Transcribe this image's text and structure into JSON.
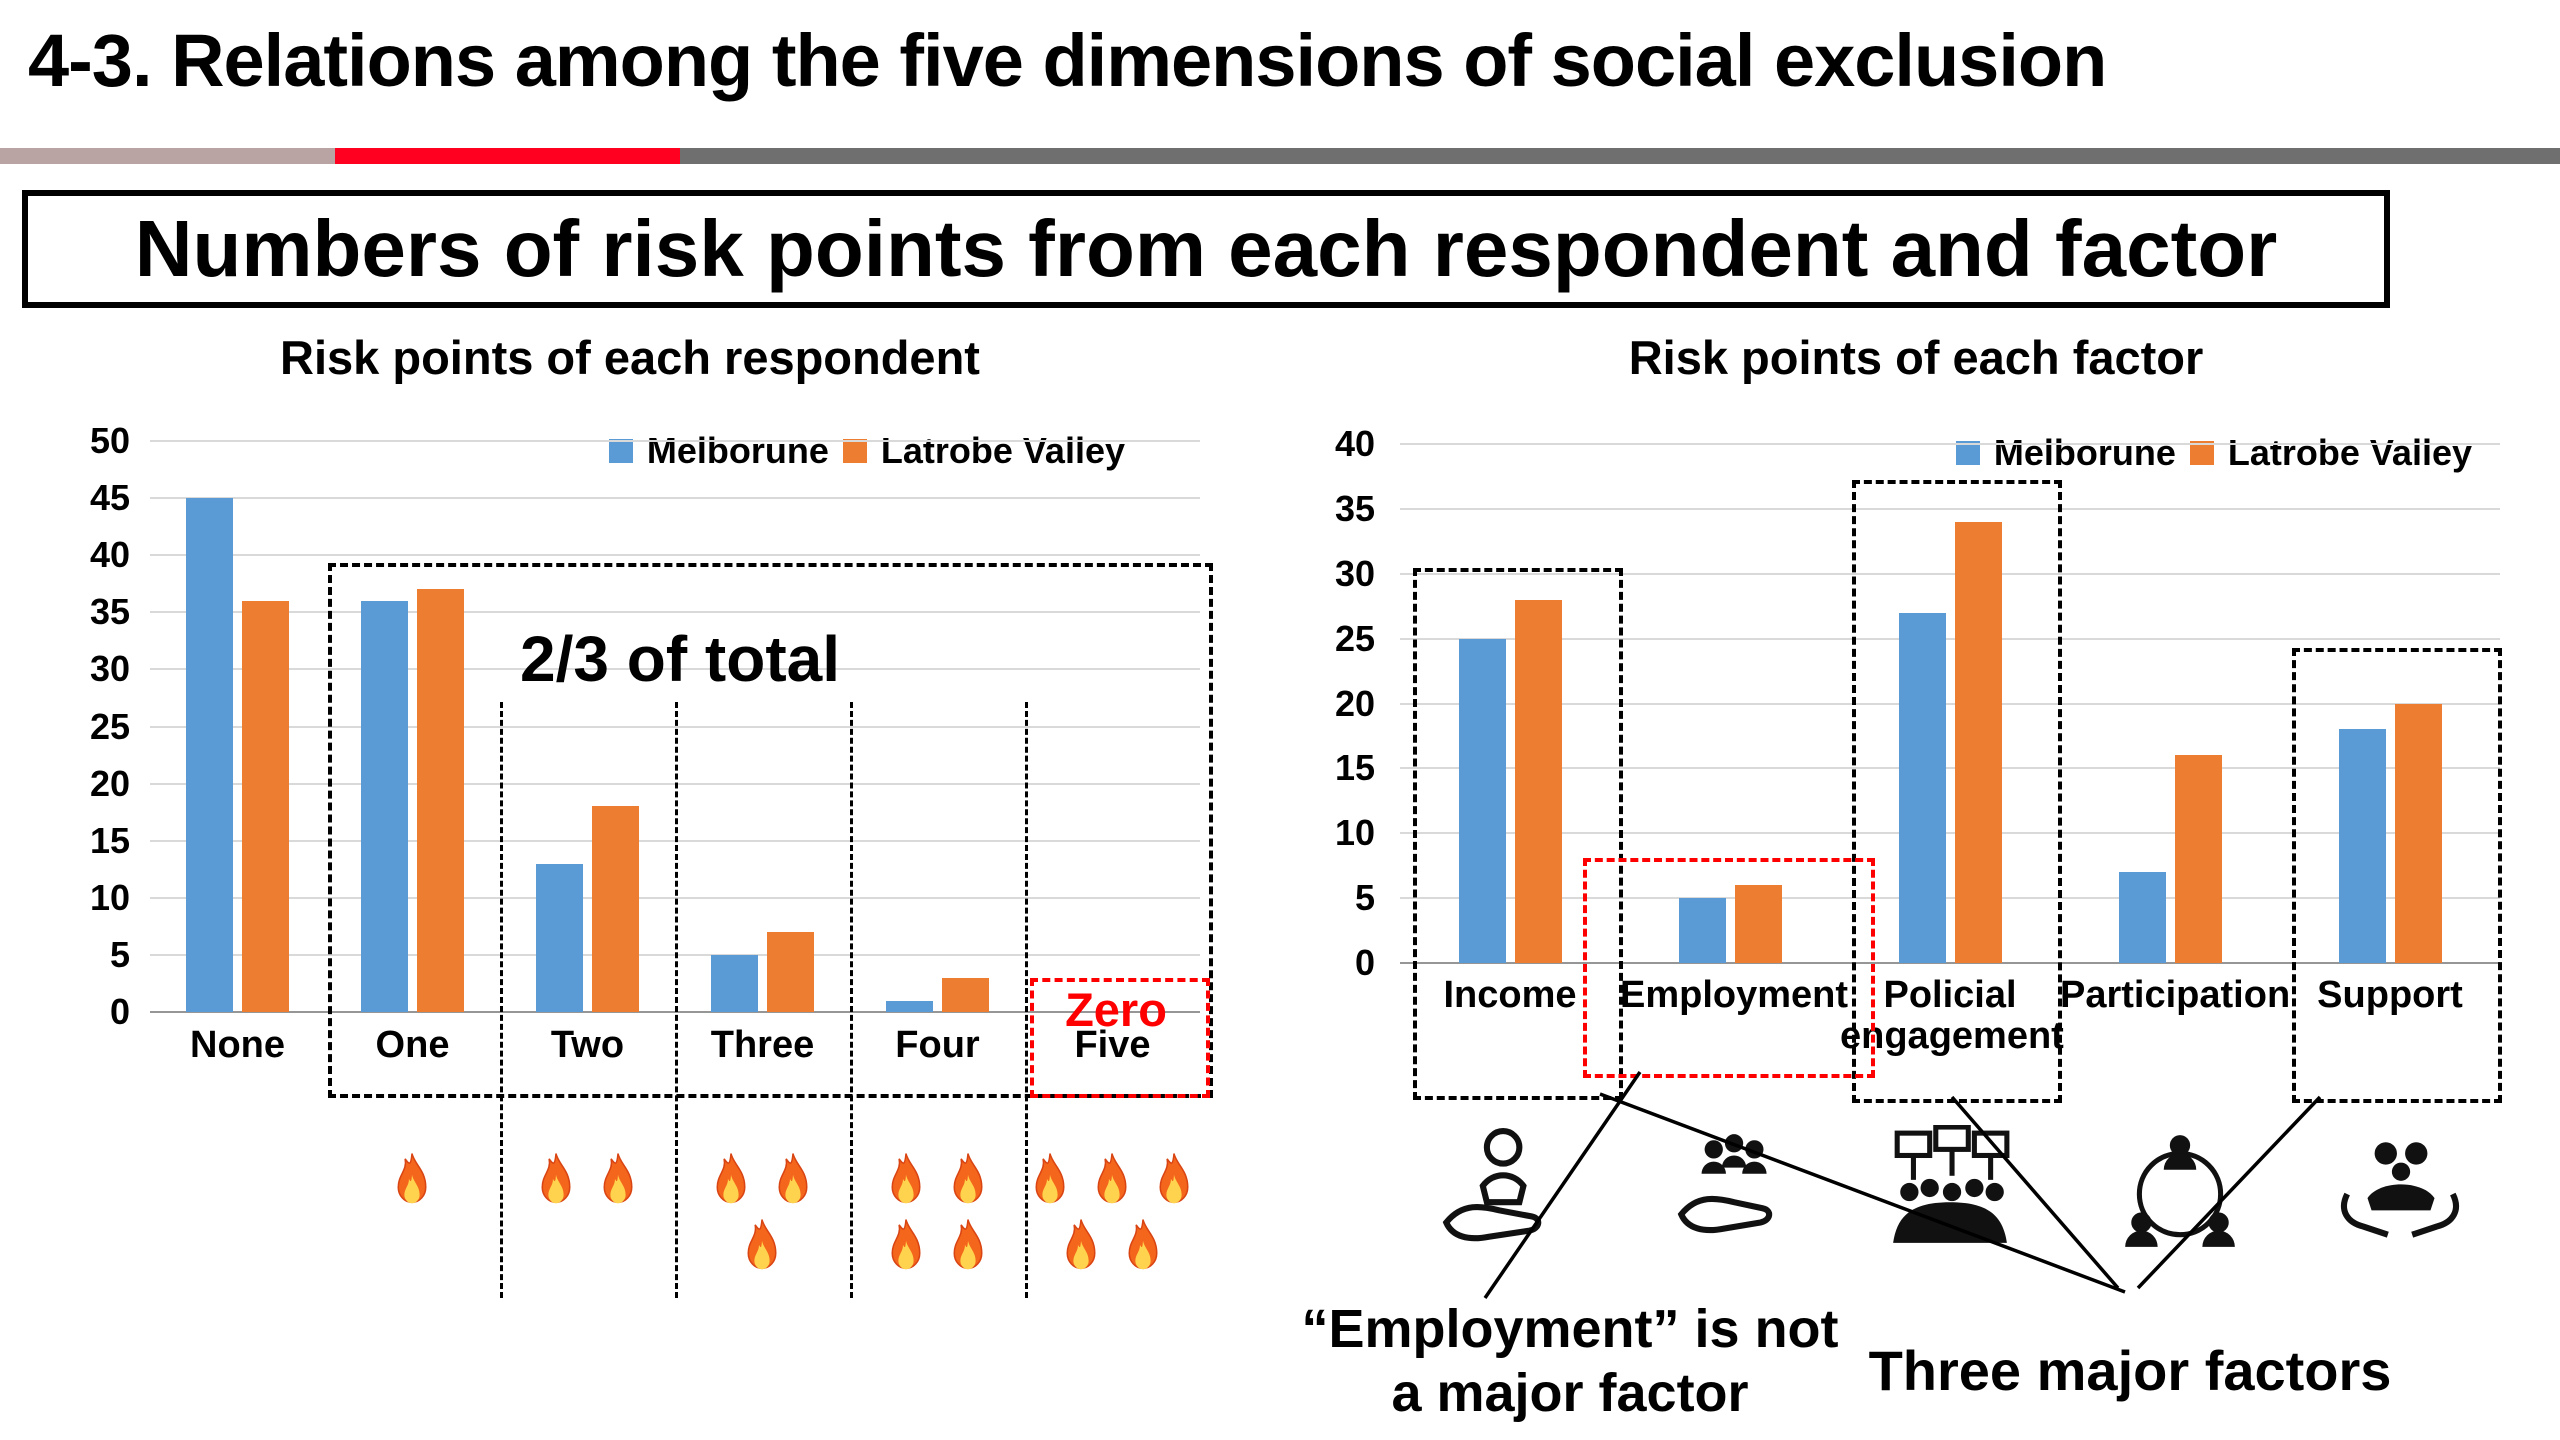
{
  "slide": {
    "title": "4-3. Relations among the five dimensions of social exclusion",
    "boxed_heading": "Numbers of risk points from each respondent and factor"
  },
  "colors": {
    "series1": "#5B9BD5",
    "series2": "#ED7D31",
    "grid": "#D9D9D9",
    "progress_red": "#FF0021",
    "progress_gray": "#6F6F6F",
    "annotation_red": "#FF0000"
  },
  "chart_data": [
    {
      "type": "bar",
      "title": "Risk points of each respondent",
      "categories": [
        "None",
        "One",
        "Two",
        "Three",
        "Four",
        "Five"
      ],
      "series": [
        {
          "name": "Melborune",
          "values": [
            45,
            36,
            13,
            5,
            1,
            0
          ]
        },
        {
          "name": "Latrobe Valley",
          "values": [
            36,
            37,
            18,
            7,
            3,
            0
          ]
        }
      ],
      "ylim": [
        0,
        50
      ],
      "ytick_step": 5,
      "legend_position": "top-right",
      "grid": true,
      "annotations": {
        "two_thirds_label": "2/3 of total",
        "zero_label": "Zero"
      },
      "fire_icons_per_category": {
        "None": 0,
        "One": 1,
        "Two": 2,
        "Three": 3,
        "Four": 4,
        "Five": 5
      }
    },
    {
      "type": "bar",
      "title": "Risk points of each factor",
      "categories": [
        "Income",
        "Employment",
        "Policial engagement",
        "Participation",
        "Support"
      ],
      "series": [
        {
          "name": "Melborune",
          "values": [
            25,
            5,
            27,
            7,
            18
          ]
        },
        {
          "name": "Latrobe Valley",
          "values": [
            28,
            6,
            34,
            16,
            20
          ]
        }
      ],
      "ylim": [
        0,
        40
      ],
      "ytick_step": 5,
      "legend_position": "top-right",
      "grid": true,
      "annotations": {
        "employment_note": "“Employment” is not a major factor",
        "three_major": "Three major factors"
      }
    }
  ]
}
